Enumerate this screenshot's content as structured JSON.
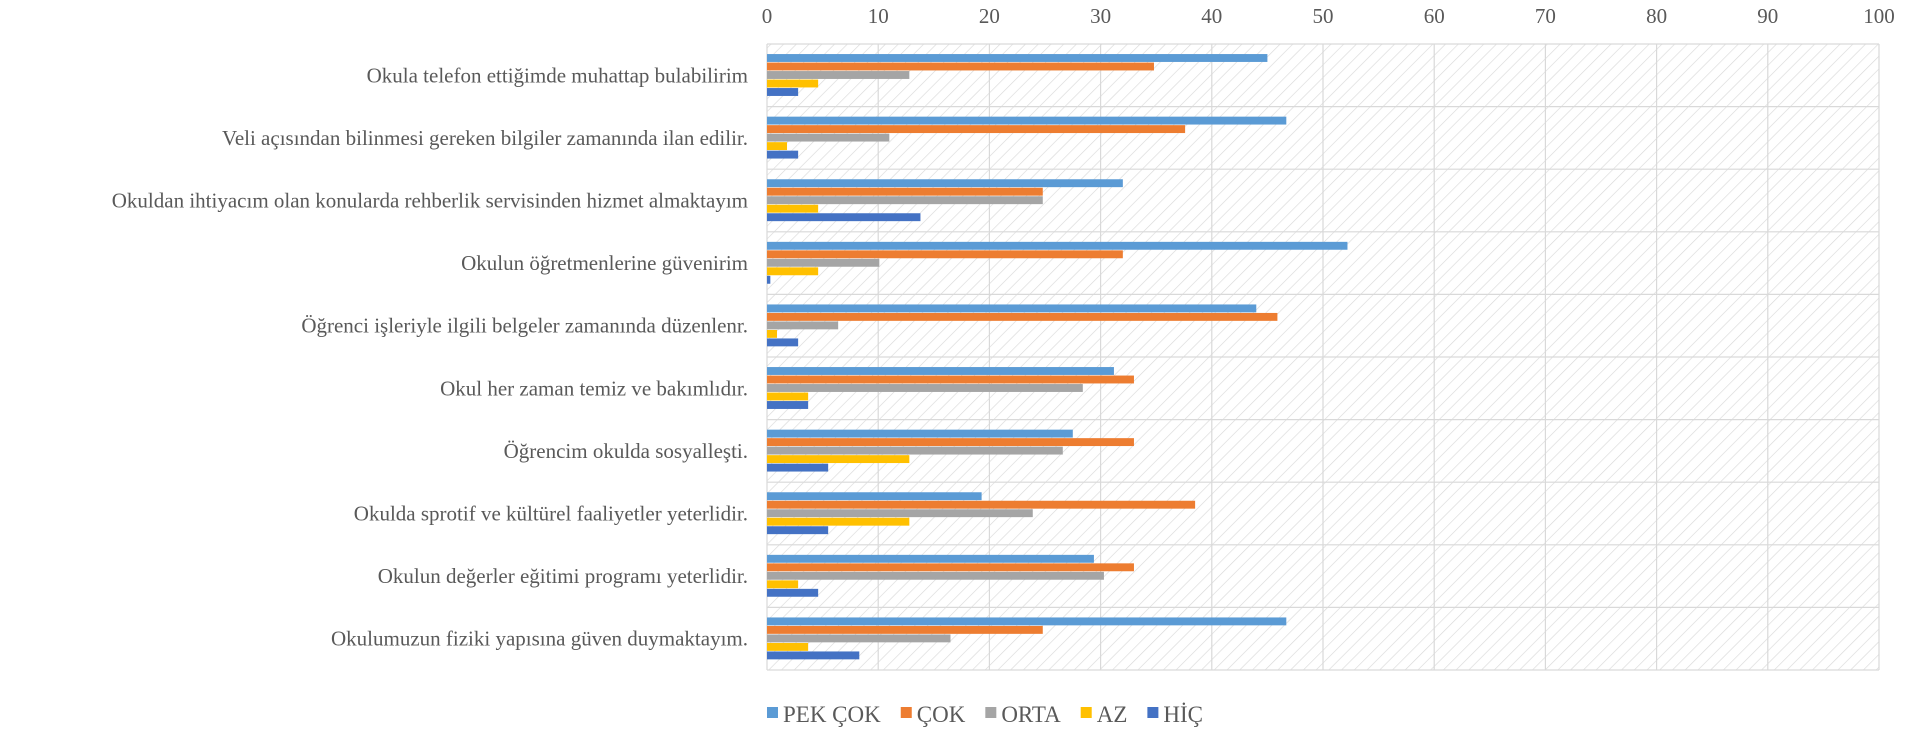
{
  "chart_data": {
    "type": "bar",
    "orientation": "horizontal",
    "categories": [
      "Okula telefon ettiğimde muhattap bulabilirim",
      "Veli açısından bilinmesi gereken bilgiler zamanında ilan edilir.",
      "Okuldan ihtiyacım olan konularda rehberlik servisinden hizmet almaktayım",
      "Okulun öğretmenlerine güvenirim",
      "Öğrenci işleriyle ilgili belgeler zamanında düzenlenr.",
      "Okul her zaman temiz ve bakımlıdır.",
      "Öğrencim okulda sosyalleşti.",
      "Okulda sprotif ve kültürel faaliyetler yeterlidir.",
      "Okulun değerler eğitimi programı yeterlidir.",
      "Okulumuzun fiziki yapısına güven duymaktayım."
    ],
    "series": [
      {
        "name": "PEK ÇOK",
        "color": "#5B9BD5",
        "values": [
          45,
          46.7,
          32,
          52.2,
          44,
          31.2,
          27.5,
          19.3,
          29.4,
          46.7
        ]
      },
      {
        "name": "ÇOK",
        "color": "#ED7D31",
        "values": [
          34.8,
          37.6,
          24.8,
          32,
          45.9,
          33,
          33,
          38.5,
          33,
          24.8
        ]
      },
      {
        "name": "ORTA",
        "color": "#A5A5A5",
        "values": [
          12.8,
          11,
          24.8,
          10.1,
          6.4,
          28.4,
          26.6,
          23.9,
          30.3,
          16.5
        ]
      },
      {
        "name": "AZ",
        "color": "#FFC000",
        "values": [
          4.6,
          1.8,
          4.6,
          4.6,
          0.9,
          3.7,
          12.8,
          12.8,
          2.8,
          3.7
        ]
      },
      {
        "name": "HİÇ",
        "color": "#4472C4",
        "values": [
          2.8,
          2.8,
          13.8,
          0.3,
          2.8,
          3.7,
          5.5,
          5.5,
          4.6,
          8.3
        ]
      }
    ],
    "xlim": [
      0,
      100
    ],
    "xticks": [
      0,
      10,
      20,
      30,
      40,
      50,
      60,
      70,
      80,
      90,
      100
    ],
    "grid": true,
    "legend_position": "bottom",
    "title": "",
    "xlabel": "",
    "ylabel": ""
  }
}
